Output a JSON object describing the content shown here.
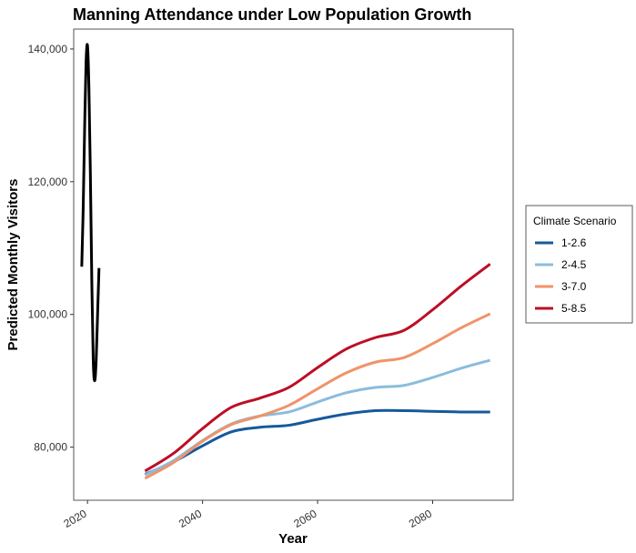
{
  "chart_data": {
    "type": "line",
    "title": "Manning Attendance under Low Population Growth",
    "xlabel": "Year",
    "ylabel": "Predicted Monthly Visitors",
    "xlim": [
      2017.6,
      2094
    ],
    "ylim": [
      72000,
      143000
    ],
    "x_ticks": [
      2020,
      2040,
      2060,
      2080
    ],
    "x_tick_labels": [
      "2020",
      "2040",
      "2060",
      "2080"
    ],
    "y_ticks": [
      80000,
      100000,
      120000,
      140000
    ],
    "y_tick_labels": [
      "80,000",
      "100,000",
      "120,000",
      "140,000"
    ],
    "grid": false,
    "legend": {
      "title": "Climate Scenario",
      "position": "right"
    },
    "historical": {
      "color": "#000000",
      "x": [
        2019.0,
        2019.25,
        2019.5,
        2019.75,
        2020.0,
        2020.25,
        2020.5,
        2020.75,
        2021.0,
        2021.25,
        2021.5,
        2021.75,
        2022.0
      ],
      "values": [
        107200,
        116000,
        128000,
        138000,
        140500,
        134000,
        121000,
        105000,
        93000,
        90000,
        93000,
        100000,
        107000
      ]
    },
    "series": [
      {
        "name": "1-2.6",
        "color": "#16599b",
        "x": [
          2030,
          2035,
          2040,
          2045,
          2050,
          2055,
          2060,
          2065,
          2070,
          2075,
          2080,
          2085,
          2090
        ],
        "values": [
          75900,
          77800,
          80200,
          82300,
          83000,
          83300,
          84200,
          85000,
          85500,
          85500,
          85400,
          85300,
          85300
        ]
      },
      {
        "name": "2-4.5",
        "color": "#8bbcdc",
        "x": [
          2030,
          2035,
          2040,
          2045,
          2050,
          2055,
          2060,
          2065,
          2070,
          2075,
          2080,
          2085,
          2090
        ],
        "values": [
          75800,
          78000,
          81000,
          83500,
          84700,
          85300,
          86800,
          88200,
          89000,
          89300,
          90500,
          91900,
          93100
        ]
      },
      {
        "name": "3-7.0",
        "color": "#f0936a",
        "x": [
          2030,
          2035,
          2040,
          2045,
          2050,
          2055,
          2060,
          2065,
          2070,
          2075,
          2080,
          2085,
          2090
        ],
        "values": [
          75300,
          77700,
          80900,
          83400,
          84700,
          86300,
          88800,
          91200,
          92800,
          93500,
          95600,
          98000,
          100100
        ]
      },
      {
        "name": "5-8.5",
        "color": "#bd0e26",
        "x": [
          2030,
          2035,
          2040,
          2045,
          2050,
          2055,
          2060,
          2065,
          2070,
          2075,
          2080,
          2085,
          2090
        ],
        "values": [
          76400,
          79100,
          82800,
          86000,
          87400,
          89000,
          92000,
          94800,
          96500,
          97600,
          100700,
          104300,
          107600
        ]
      }
    ]
  }
}
